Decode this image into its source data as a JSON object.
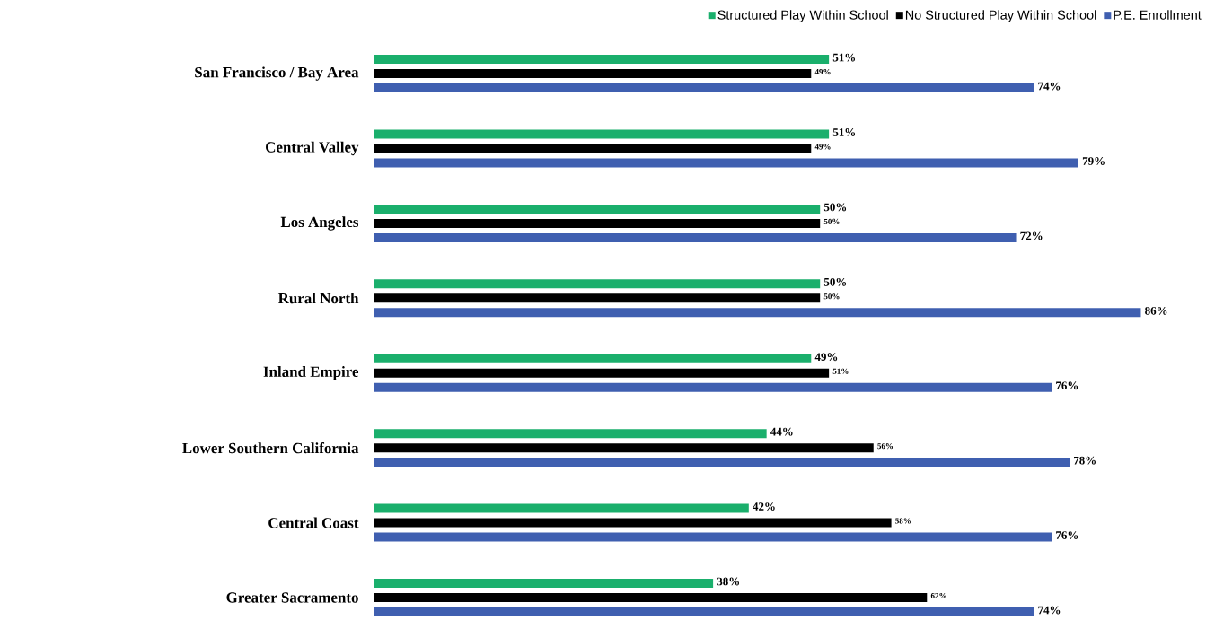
{
  "chart_data": {
    "type": "bar",
    "orientation": "horizontal",
    "legend": "top right",
    "categories": [
      "San Francisco / Bay Area",
      "Central Valley",
      "Los Angeles",
      "Rural North",
      "Inland Empire",
      "Lower Southern California",
      "Central Coast",
      "Greater Sacramento"
    ],
    "series": [
      {
        "name": "Structured Play Within School",
        "color": "#1aaf6c",
        "values": [
          51,
          51,
          50,
          50,
          49,
          44,
          42,
          38
        ],
        "value_labels": [
          "51%",
          "51%",
          "50%",
          "50%",
          "49%",
          "44%",
          "42%",
          "38%"
        ]
      },
      {
        "name": "No Structured Play Within School",
        "color": "#000000",
        "values": [
          49,
          49,
          50,
          50,
          51,
          56,
          58,
          62
        ],
        "value_labels": [
          "49%",
          "49%",
          "50%",
          "50%",
          "51%",
          "56%",
          "58%",
          "62%"
        ]
      },
      {
        "name": "P.E. Enrollment",
        "color": "#3f5fb0",
        "values": [
          74,
          79,
          72,
          86,
          76,
          78,
          76,
          74
        ],
        "value_labels": [
          "74%",
          "79%",
          "72%",
          "86%",
          "76%",
          "78%",
          "76%",
          "74%"
        ]
      }
    ]
  }
}
